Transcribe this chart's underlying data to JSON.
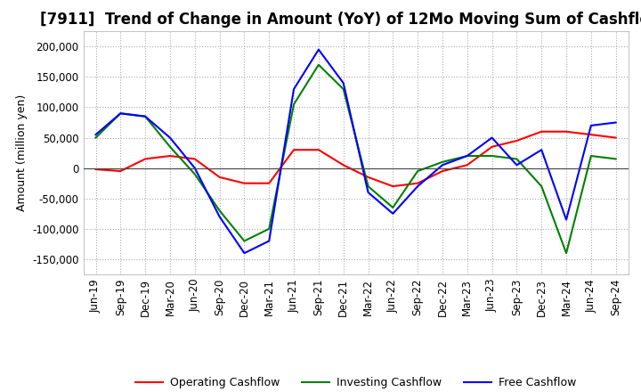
{
  "title": "[7911]  Trend of Change in Amount (YoY) of 12Mo Moving Sum of Cashflows",
  "ylabel": "Amount (million yen)",
  "x_labels": [
    "Jun-19",
    "Sep-19",
    "Dec-19",
    "Mar-20",
    "Jun-20",
    "Sep-20",
    "Dec-20",
    "Mar-21",
    "Jun-21",
    "Sep-21",
    "Dec-21",
    "Mar-22",
    "Jun-22",
    "Sep-22",
    "Dec-22",
    "Mar-23",
    "Jun-23",
    "Sep-23",
    "Dec-23",
    "Mar-24",
    "Jun-24",
    "Sep-24"
  ],
  "operating": [
    -2000,
    -5000,
    15000,
    20000,
    15000,
    -15000,
    -25000,
    -25000,
    30000,
    30000,
    5000,
    -15000,
    -30000,
    -25000,
    -5000,
    5000,
    35000,
    45000,
    60000,
    60000,
    55000,
    50000
  ],
  "investing": [
    50000,
    90000,
    85000,
    35000,
    -10000,
    -70000,
    -120000,
    -100000,
    105000,
    170000,
    130000,
    -30000,
    -65000,
    -5000,
    10000,
    20000,
    20000,
    15000,
    -30000,
    -140000,
    20000,
    15000
  ],
  "free": [
    55000,
    90000,
    85000,
    50000,
    0,
    -80000,
    -140000,
    -120000,
    130000,
    195000,
    140000,
    -40000,
    -75000,
    -30000,
    5000,
    20000,
    50000,
    5000,
    30000,
    -85000,
    70000,
    75000
  ],
  "ylim": [
    -175000,
    225000
  ],
  "yticks": [
    -150000,
    -100000,
    -50000,
    0,
    50000,
    100000,
    150000,
    200000
  ],
  "colors": {
    "operating": "#ff0000",
    "investing": "#008000",
    "free": "#0000ff"
  },
  "legend_labels": [
    "Operating Cashflow",
    "Investing Cashflow",
    "Free Cashflow"
  ],
  "grid_color": "#aaaaaa",
  "bg_color": "#ffffff",
  "title_fontsize": 12,
  "label_fontsize": 9,
  "tick_fontsize": 8.5,
  "linewidth": 1.5
}
